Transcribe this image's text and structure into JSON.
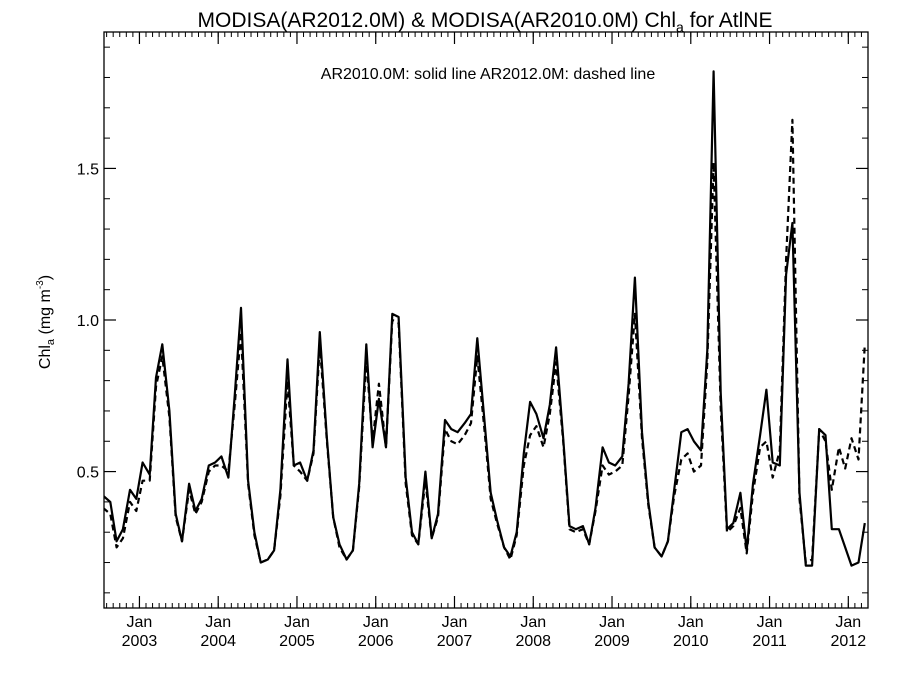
{
  "chart_data": {
    "type": "line",
    "title_parts": [
      "MODISA(AR2012.0M) & MODISA(AR2010.0M)  Chl",
      "a",
      " for AtlNE"
    ],
    "annotation": "AR2010.0M: solid line   AR2012.0M: dashed line",
    "ylabel_parts": [
      "Chl",
      "a",
      " (mg m",
      "-3",
      ")"
    ],
    "xlabel": "",
    "x_ticks": [
      {
        "month": "Jan",
        "year": "2003",
        "t": 2003.0
      },
      {
        "month": "Jan",
        "year": "2004",
        "t": 2004.0
      },
      {
        "month": "Jan",
        "year": "2005",
        "t": 2005.0
      },
      {
        "month": "Jan",
        "year": "2006",
        "t": 2006.0
      },
      {
        "month": "Jan",
        "year": "2007",
        "t": 2007.0
      },
      {
        "month": "Jan",
        "year": "2008",
        "t": 2008.0
      },
      {
        "month": "Jan",
        "year": "2009",
        "t": 2009.0
      },
      {
        "month": "Jan",
        "year": "2010",
        "t": 2010.0
      },
      {
        "month": "Jan",
        "year": "2011",
        "t": 2011.0
      },
      {
        "month": "Jan",
        "year": "2012",
        "t": 2012.0
      }
    ],
    "y_ticks": [
      {
        "label": "0.5",
        "value": 0.5
      },
      {
        "label": "1.0",
        "value": 1.0
      },
      {
        "label": "1.5",
        "value": 1.5
      }
    ],
    "xlim": [
      2002.55,
      2012.25
    ],
    "ylim": [
      0.05,
      1.95
    ],
    "grid": false,
    "series": [
      {
        "name": "AR2010.0M",
        "style": "solid",
        "color": "#000000",
        "x": [
          2002.54,
          2002.63,
          2002.71,
          2002.79,
          2002.88,
          2002.96,
          2003.04,
          2003.13,
          2003.21,
          2003.29,
          2003.38,
          2003.46,
          2003.54,
          2003.63,
          2003.71,
          2003.79,
          2003.88,
          2003.96,
          2004.04,
          2004.13,
          2004.21,
          2004.29,
          2004.38,
          2004.46,
          2004.54,
          2004.63,
          2004.71,
          2004.79,
          2004.88,
          2004.96,
          2005.04,
          2005.13,
          2005.21,
          2005.29,
          2005.38,
          2005.46,
          2005.54,
          2005.63,
          2005.71,
          2005.79,
          2005.88,
          2005.96,
          2006.04,
          2006.13,
          2006.21,
          2006.29,
          2006.38,
          2006.46,
          2006.54,
          2006.63,
          2006.71,
          2006.79,
          2006.88,
          2006.96,
          2007.04,
          2007.13,
          2007.21,
          2007.29,
          2007.38,
          2007.46,
          2007.54,
          2007.63,
          2007.71,
          2007.79,
          2007.88,
          2007.96,
          2008.04,
          2008.13,
          2008.21,
          2008.29,
          2008.38,
          2008.46,
          2008.54,
          2008.63,
          2008.71,
          2008.79,
          2008.88,
          2008.96,
          2009.04,
          2009.13,
          2009.21,
          2009.29,
          2009.38,
          2009.46,
          2009.54,
          2009.63,
          2009.71,
          2009.79,
          2009.88,
          2009.96,
          2010.04,
          2010.13,
          2010.21,
          2010.29,
          2010.38,
          2010.46,
          2010.54,
          2010.63,
          2010.71,
          2010.79,
          2010.88,
          2010.96,
          2011.04,
          2011.13,
          2011.21,
          2011.29,
          2011.38,
          2011.46,
          2011.54,
          2011.63,
          2011.71,
          2011.79,
          2011.88,
          2011.96,
          2012.04,
          2012.13,
          2012.21
        ],
        "y": [
          0.42,
          0.4,
          0.27,
          0.31,
          0.44,
          0.41,
          0.53,
          0.49,
          0.81,
          0.92,
          0.7,
          0.36,
          0.27,
          0.46,
          0.37,
          0.41,
          0.52,
          0.53,
          0.55,
          0.48,
          0.75,
          1.04,
          0.47,
          0.3,
          0.2,
          0.21,
          0.24,
          0.44,
          0.87,
          0.52,
          0.53,
          0.47,
          0.57,
          0.96,
          0.61,
          0.35,
          0.26,
          0.21,
          0.24,
          0.46,
          0.92,
          0.58,
          0.74,
          0.58,
          1.02,
          1.01,
          0.48,
          0.3,
          0.26,
          0.5,
          0.28,
          0.36,
          0.67,
          0.64,
          0.63,
          0.66,
          0.69,
          0.94,
          0.67,
          0.43,
          0.34,
          0.25,
          0.22,
          0.3,
          0.56,
          0.73,
          0.69,
          0.61,
          0.72,
          0.91,
          0.61,
          0.32,
          0.31,
          0.32,
          0.26,
          0.38,
          0.58,
          0.53,
          0.52,
          0.55,
          0.79,
          1.14,
          0.63,
          0.4,
          0.25,
          0.22,
          0.27,
          0.44,
          0.63,
          0.64,
          0.6,
          0.57,
          0.9,
          1.82,
          0.76,
          0.31,
          0.33,
          0.43,
          0.24,
          0.46,
          0.62,
          0.77,
          0.53,
          0.52,
          1.15,
          1.32,
          0.43,
          0.19,
          0.19,
          0.64,
          0.62,
          0.31,
          0.31,
          0.25,
          0.19,
          0.2,
          0.33
        ]
      },
      {
        "name": "AR2012.0M",
        "style": "dashed",
        "color": "#000000",
        "x": [
          2002.54,
          2002.63,
          2002.71,
          2002.79,
          2002.88,
          2002.96,
          2003.04,
          2003.13,
          2003.21,
          2003.29,
          2003.38,
          2003.46,
          2003.54,
          2003.63,
          2003.71,
          2003.79,
          2003.88,
          2003.96,
          2004.04,
          2004.13,
          2004.21,
          2004.29,
          2004.38,
          2004.46,
          2004.54,
          2004.63,
          2004.71,
          2004.79,
          2004.88,
          2004.96,
          2005.04,
          2005.13,
          2005.21,
          2005.29,
          2005.38,
          2005.46,
          2005.54,
          2005.63,
          2005.71,
          2005.79,
          2005.88,
          2005.96,
          2006.04,
          2006.13,
          2006.21,
          2006.29,
          2006.38,
          2006.46,
          2006.54,
          2006.63,
          2006.71,
          2006.79,
          2006.88,
          2006.96,
          2007.04,
          2007.13,
          2007.21,
          2007.29,
          2007.38,
          2007.46,
          2007.54,
          2007.63,
          2007.71,
          2007.79,
          2007.88,
          2007.96,
          2008.04,
          2008.13,
          2008.21,
          2008.29,
          2008.38,
          2008.46,
          2008.54,
          2008.63,
          2008.71,
          2008.79,
          2008.88,
          2008.96,
          2009.04,
          2009.13,
          2009.21,
          2009.29,
          2009.38,
          2009.46,
          2009.54,
          2009.63,
          2009.71,
          2009.79,
          2009.88,
          2009.96,
          2010.04,
          2010.13,
          2010.21,
          2010.29,
          2010.38,
          2010.46,
          2010.54,
          2010.63,
          2010.71,
          2010.79,
          2010.88,
          2010.96,
          2011.04,
          2011.13,
          2011.21,
          2011.29,
          2011.38,
          2011.46,
          2011.54,
          2011.63,
          2011.71,
          2011.79,
          2011.88,
          2011.96,
          2012.04,
          2012.13,
          2012.21
        ],
        "y": [
          0.38,
          0.36,
          0.25,
          0.28,
          0.4,
          0.37,
          0.47,
          0.47,
          0.78,
          0.88,
          0.68,
          0.35,
          0.27,
          0.44,
          0.36,
          0.4,
          0.5,
          0.52,
          0.52,
          0.5,
          0.72,
          0.96,
          0.46,
          0.29,
          0.2,
          0.21,
          0.24,
          0.42,
          0.8,
          0.52,
          0.5,
          0.47,
          0.56,
          0.92,
          0.6,
          0.35,
          0.25,
          0.21,
          0.24,
          0.45,
          0.87,
          0.6,
          0.79,
          0.58,
          1.0,
          0.99,
          0.46,
          0.29,
          0.26,
          0.47,
          0.28,
          0.35,
          0.64,
          0.6,
          0.59,
          0.62,
          0.66,
          0.88,
          0.64,
          0.41,
          0.33,
          0.25,
          0.21,
          0.29,
          0.52,
          0.62,
          0.65,
          0.58,
          0.69,
          0.86,
          0.6,
          0.31,
          0.3,
          0.31,
          0.26,
          0.37,
          0.52,
          0.49,
          0.5,
          0.52,
          0.75,
          1.02,
          0.61,
          0.39,
          0.25,
          0.22,
          0.27,
          0.42,
          0.54,
          0.56,
          0.5,
          0.52,
          0.86,
          1.52,
          0.71,
          0.3,
          0.32,
          0.38,
          0.23,
          0.43,
          0.58,
          0.6,
          0.48,
          0.57,
          1.2,
          1.66,
          0.41,
          0.2,
          0.21,
          0.64,
          0.6,
          0.44,
          0.58,
          0.51,
          0.61,
          0.54,
          0.92
        ]
      }
    ]
  }
}
